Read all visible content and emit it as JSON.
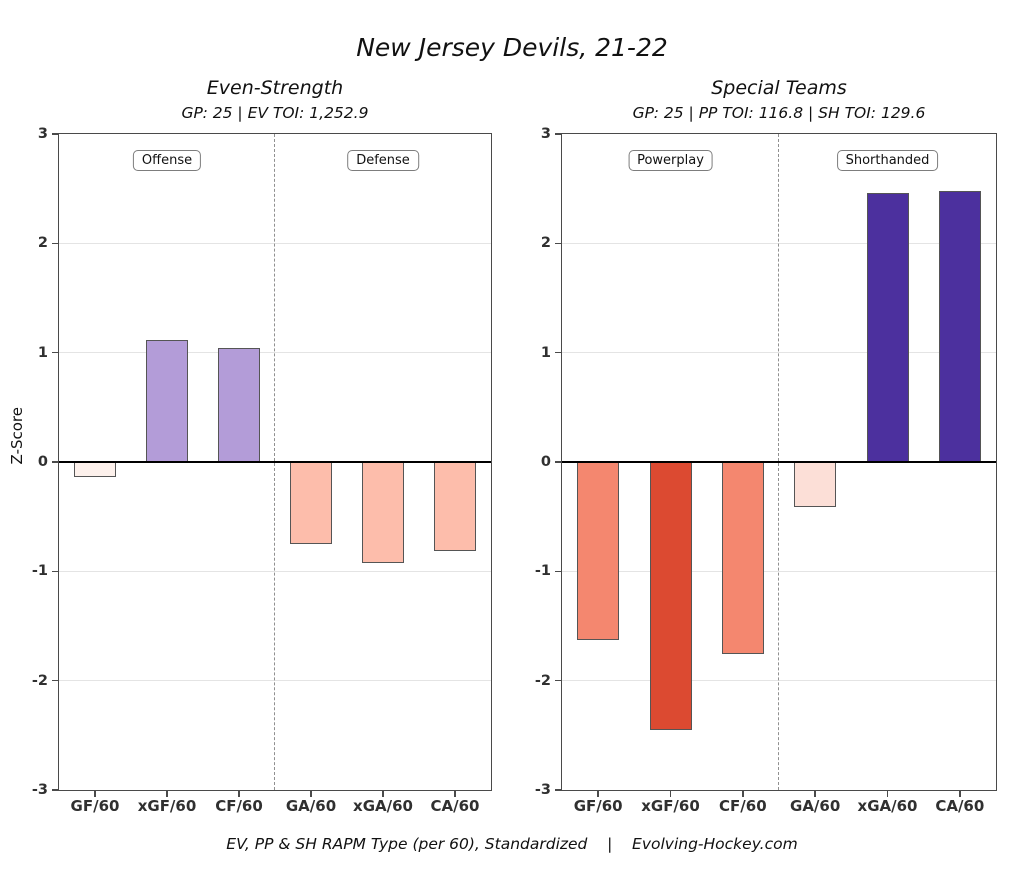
{
  "title": "New Jersey Devils, 21-22",
  "ylabel": "Z-Score",
  "caption": "EV, PP & SH RAPM Type (per 60), Standardized    |    Evolving-Hockey.com",
  "colors": {
    "panel_border": "#4a4a4a",
    "gridline": "#e4e4e4",
    "zero_line": "#000000",
    "separator": "#909090",
    "bar_border": "#555555",
    "tick_text": "#303030"
  },
  "chart_data": [
    {
      "type": "bar",
      "title": "Even-Strength",
      "subtitle": "GP: 25 | EV TOI: 1,252.9",
      "categories": [
        "GF/60",
        "xGF/60",
        "CF/60",
        "GA/60",
        "xGA/60",
        "CA/60"
      ],
      "values": [
        -0.14,
        1.12,
        1.04,
        -0.75,
        -0.92,
        -0.81
      ],
      "bar_colors": [
        "#fdf1ec",
        "#b39cd8",
        "#b39cd8",
        "#fdbdab",
        "#fdbdab",
        "#fdbdab"
      ],
      "group_labels": [
        "Offense",
        "Defense"
      ],
      "ylabel": "Z-Score",
      "ylim": [
        -3,
        3
      ],
      "yticks": [
        3,
        2,
        1,
        0,
        -1,
        -2,
        -3
      ],
      "grid": true,
      "legend": "none"
    },
    {
      "type": "bar",
      "title": "Special Teams",
      "subtitle": "GP: 25 | PP TOI: 116.8 | SH TOI: 129.6",
      "categories": [
        "GF/60",
        "xGF/60",
        "CF/60",
        "GA/60",
        "xGA/60",
        "CA/60"
      ],
      "values": [
        -1.63,
        -2.45,
        -1.76,
        -0.41,
        2.46,
        2.48
      ],
      "bar_colors": [
        "#f4876f",
        "#dc4a31",
        "#f4876f",
        "#fcdfd7",
        "#4c309e",
        "#4c309e"
      ],
      "group_labels": [
        "Powerplay",
        "Shorthanded"
      ],
      "ylabel": "Z-Score",
      "ylim": [
        -3,
        3
      ],
      "yticks": [
        3,
        2,
        1,
        0,
        -1,
        -2,
        -3
      ],
      "grid": true,
      "legend": "none"
    }
  ]
}
